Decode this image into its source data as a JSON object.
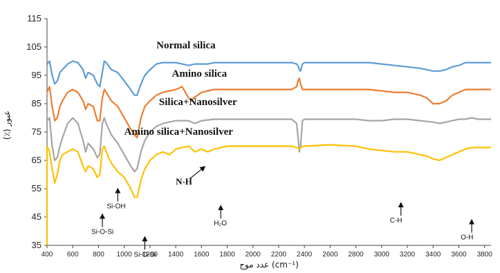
{
  "chart_data": {
    "type": "line",
    "title": "",
    "xlabel": "عدد موج (cm⁻¹)",
    "ylabel": "(٪) عبور",
    "xlim": [
      400,
      3850
    ],
    "ylim": [
      35,
      115
    ],
    "x_ticks": [
      400,
      600,
      800,
      1000,
      1200,
      1400,
      1600,
      1800,
      2000,
      2200,
      2400,
      2600,
      2800,
      3000,
      3200,
      3400,
      3600,
      3800
    ],
    "y_ticks": [
      35,
      45,
      55,
      65,
      75,
      85,
      95,
      105,
      115
    ],
    "grid": false,
    "series": [
      {
        "name": "Normal silica",
        "color": "#5B9BD5",
        "points": [
          [
            400,
            99
          ],
          [
            420,
            100
          ],
          [
            440,
            95
          ],
          [
            460,
            92
          ],
          [
            480,
            93
          ],
          [
            500,
            96
          ],
          [
            520,
            97
          ],
          [
            560,
            99
          ],
          [
            600,
            100
          ],
          [
            640,
            99.5
          ],
          [
            680,
            97
          ],
          [
            700,
            94
          ],
          [
            720,
            96
          ],
          [
            760,
            95
          ],
          [
            790,
            92
          ],
          [
            810,
            91
          ],
          [
            830,
            96
          ],
          [
            845,
            100
          ],
          [
            860,
            99.5
          ],
          [
            900,
            97
          ],
          [
            950,
            96
          ],
          [
            1000,
            93
          ],
          [
            1050,
            90
          ],
          [
            1080,
            88
          ],
          [
            1100,
            88
          ],
          [
            1130,
            92
          ],
          [
            1160,
            95
          ],
          [
            1200,
            97
          ],
          [
            1250,
            99
          ],
          [
            1300,
            99.5
          ],
          [
            1400,
            99.5
          ],
          [
            1450,
            99
          ],
          [
            1500,
            98.5
          ],
          [
            1550,
            99
          ],
          [
            1600,
            99
          ],
          [
            1650,
            99
          ],
          [
            1700,
            99.5
          ],
          [
            1800,
            99.5
          ],
          [
            2000,
            99.5
          ],
          [
            2200,
            99.5
          ],
          [
            2300,
            99.5
          ],
          [
            2340,
            99
          ],
          [
            2355,
            98
          ],
          [
            2360,
            97
          ],
          [
            2370,
            96.5
          ],
          [
            2385,
            99
          ],
          [
            2400,
            99.5
          ],
          [
            2600,
            99.5
          ],
          [
            2800,
            99.5
          ],
          [
            2900,
            99.5
          ],
          [
            3000,
            99
          ],
          [
            3100,
            98.5
          ],
          [
            3200,
            98
          ],
          [
            3300,
            97.5
          ],
          [
            3350,
            97
          ],
          [
            3400,
            96.5
          ],
          [
            3450,
            96.5
          ],
          [
            3500,
            97
          ],
          [
            3550,
            98
          ],
          [
            3600,
            98.5
          ],
          [
            3650,
            99.5
          ],
          [
            3700,
            99.5
          ],
          [
            3750,
            99.5
          ],
          [
            3800,
            99.5
          ],
          [
            3850,
            99.5
          ]
        ]
      },
      {
        "name": "Amino silica",
        "color": "#ED7D31",
        "points": [
          [
            400,
            89
          ],
          [
            420,
            91
          ],
          [
            440,
            84
          ],
          [
            460,
            79
          ],
          [
            480,
            80
          ],
          [
            500,
            84
          ],
          [
            520,
            86
          ],
          [
            560,
            89
          ],
          [
            600,
            90
          ],
          [
            640,
            89
          ],
          [
            680,
            86
          ],
          [
            700,
            83
          ],
          [
            720,
            85
          ],
          [
            760,
            84
          ],
          [
            790,
            79
          ],
          [
            810,
            79
          ],
          [
            830,
            87
          ],
          [
            845,
            90
          ],
          [
            860,
            89
          ],
          [
            900,
            86
          ],
          [
            950,
            84
          ],
          [
            1000,
            80
          ],
          [
            1050,
            76
          ],
          [
            1080,
            74
          ],
          [
            1100,
            73
          ],
          [
            1130,
            80
          ],
          [
            1160,
            84
          ],
          [
            1200,
            86
          ],
          [
            1250,
            88
          ],
          [
            1300,
            89
          ],
          [
            1400,
            90
          ],
          [
            1450,
            91
          ],
          [
            1500,
            87
          ],
          [
            1520,
            86
          ],
          [
            1540,
            87
          ],
          [
            1600,
            89
          ],
          [
            1700,
            90
          ],
          [
            1800,
            90
          ],
          [
            2000,
            90
          ],
          [
            2200,
            90
          ],
          [
            2300,
            90
          ],
          [
            2340,
            91
          ],
          [
            2350,
            93
          ],
          [
            2360,
            94
          ],
          [
            2370,
            92
          ],
          [
            2385,
            90
          ],
          [
            2400,
            90
          ],
          [
            2600,
            90
          ],
          [
            2800,
            90
          ],
          [
            2900,
            90
          ],
          [
            3000,
            89.5
          ],
          [
            3100,
            89
          ],
          [
            3200,
            89
          ],
          [
            3300,
            88
          ],
          [
            3350,
            87
          ],
          [
            3400,
            85
          ],
          [
            3450,
            85
          ],
          [
            3500,
            86
          ],
          [
            3550,
            88
          ],
          [
            3600,
            89
          ],
          [
            3650,
            90
          ],
          [
            3700,
            90
          ],
          [
            3750,
            90
          ],
          [
            3800,
            90
          ],
          [
            3850,
            90
          ]
        ]
      },
      {
        "name": "Silica+Nanosilver",
        "color": "#A5A5A5",
        "points": [
          [
            400,
            79
          ],
          [
            420,
            80
          ],
          [
            440,
            70
          ],
          [
            460,
            65
          ],
          [
            480,
            66
          ],
          [
            500,
            70
          ],
          [
            520,
            73
          ],
          [
            560,
            78
          ],
          [
            600,
            80
          ],
          [
            640,
            78
          ],
          [
            680,
            72
          ],
          [
            700,
            68
          ],
          [
            720,
            71
          ],
          [
            760,
            69
          ],
          [
            790,
            66
          ],
          [
            810,
            67
          ],
          [
            830,
            78
          ],
          [
            845,
            80
          ],
          [
            860,
            78
          ],
          [
            900,
            74
          ],
          [
            950,
            71
          ],
          [
            1000,
            67
          ],
          [
            1050,
            63
          ],
          [
            1080,
            61
          ],
          [
            1100,
            62
          ],
          [
            1130,
            68
          ],
          [
            1160,
            72
          ],
          [
            1200,
            75
          ],
          [
            1250,
            77
          ],
          [
            1300,
            78
          ],
          [
            1400,
            79
          ],
          [
            1500,
            79
          ],
          [
            1550,
            78
          ],
          [
            1600,
            79
          ],
          [
            1700,
            79.5
          ],
          [
            1800,
            79.5
          ],
          [
            2000,
            79.5
          ],
          [
            2200,
            79.5
          ],
          [
            2300,
            79.5
          ],
          [
            2340,
            78
          ],
          [
            2355,
            71
          ],
          [
            2360,
            68
          ],
          [
            2370,
            70
          ],
          [
            2385,
            79
          ],
          [
            2400,
            79.5
          ],
          [
            2600,
            79.5
          ],
          [
            2800,
            79.5
          ],
          [
            2900,
            79
          ],
          [
            3000,
            79
          ],
          [
            3100,
            79.5
          ],
          [
            3200,
            79.5
          ],
          [
            3300,
            79
          ],
          [
            3400,
            78.5
          ],
          [
            3450,
            78
          ],
          [
            3500,
            78.5
          ],
          [
            3550,
            79
          ],
          [
            3600,
            79.5
          ],
          [
            3650,
            79.5
          ],
          [
            3700,
            80
          ],
          [
            3750,
            79.5
          ],
          [
            3800,
            79.5
          ],
          [
            3850,
            79.5
          ]
        ]
      },
      {
        "name": "Amino silica+Nanosilver",
        "color": "#FFC000",
        "points": [
          [
            400,
            70
          ],
          [
            420,
            68
          ],
          [
            440,
            62
          ],
          [
            460,
            57
          ],
          [
            480,
            60
          ],
          [
            500,
            65
          ],
          [
            520,
            67
          ],
          [
            560,
            68
          ],
          [
            600,
            69
          ],
          [
            640,
            68
          ],
          [
            680,
            63
          ],
          [
            700,
            61
          ],
          [
            720,
            63
          ],
          [
            760,
            62
          ],
          [
            790,
            59
          ],
          [
            810,
            60
          ],
          [
            830,
            69
          ],
          [
            845,
            70
          ],
          [
            860,
            68
          ],
          [
            900,
            64
          ],
          [
            950,
            61
          ],
          [
            1000,
            59
          ],
          [
            1050,
            55
          ],
          [
            1080,
            52
          ],
          [
            1100,
            52
          ],
          [
            1130,
            58
          ],
          [
            1160,
            62
          ],
          [
            1200,
            65
          ],
          [
            1250,
            67
          ],
          [
            1300,
            68
          ],
          [
            1350,
            67
          ],
          [
            1380,
            68
          ],
          [
            1400,
            69
          ],
          [
            1500,
            70
          ],
          [
            1550,
            68
          ],
          [
            1600,
            69
          ],
          [
            1650,
            68
          ],
          [
            1700,
            69
          ],
          [
            1800,
            70
          ],
          [
            2000,
            70
          ],
          [
            2200,
            70
          ],
          [
            2300,
            70
          ],
          [
            2340,
            69.5
          ],
          [
            2360,
            69
          ],
          [
            2385,
            70
          ],
          [
            2400,
            70
          ],
          [
            2600,
            70.5
          ],
          [
            2800,
            70
          ],
          [
            2900,
            69
          ],
          [
            3000,
            68.5
          ],
          [
            3100,
            68
          ],
          [
            3200,
            68
          ],
          [
            3300,
            67
          ],
          [
            3350,
            66.5
          ],
          [
            3400,
            65.5
          ],
          [
            3450,
            65
          ],
          [
            3500,
            66
          ],
          [
            3550,
            67
          ],
          [
            3600,
            68
          ],
          [
            3650,
            69
          ],
          [
            3700,
            69.5
          ],
          [
            3750,
            69.5
          ],
          [
            3800,
            69.5
          ],
          [
            3850,
            69.5
          ]
        ]
      }
    ],
    "series_labels": [
      {
        "series": 0,
        "text": "Normal silica",
        "x": 1250,
        "y": 104.5
      },
      {
        "series": 1,
        "text": "Amino silica",
        "x": 1370,
        "y": 94.5
      },
      {
        "series": 2,
        "text": "Silica+Nanosilver",
        "x": 1270,
        "y": 84.5
      },
      {
        "series": 3,
        "text": "Amino silica+Nanosilver",
        "x": 1000,
        "y": 74
      }
    ],
    "annotations": [
      {
        "text": "Si-OH",
        "x": 950,
        "y": 49,
        "arrow": "up"
      },
      {
        "text": "Si-O-Si",
        "x": 830,
        "y": 40,
        "arrow": "up"
      },
      {
        "text": "Si-O-Si",
        "x": 1160,
        "y": 32,
        "arrow": "up"
      },
      {
        "text": "N-H",
        "x": 1400,
        "y": 57,
        "arrow": "diag",
        "bold": true
      },
      {
        "text": "H₂O",
        "x": 1750,
        "y": 43,
        "arrow": "up"
      },
      {
        "text": "C-H",
        "x": 3150,
        "y": 44,
        "arrow": "up"
      },
      {
        "text": "O-H",
        "x": 3700,
        "y": 38,
        "arrow": "up"
      }
    ]
  }
}
